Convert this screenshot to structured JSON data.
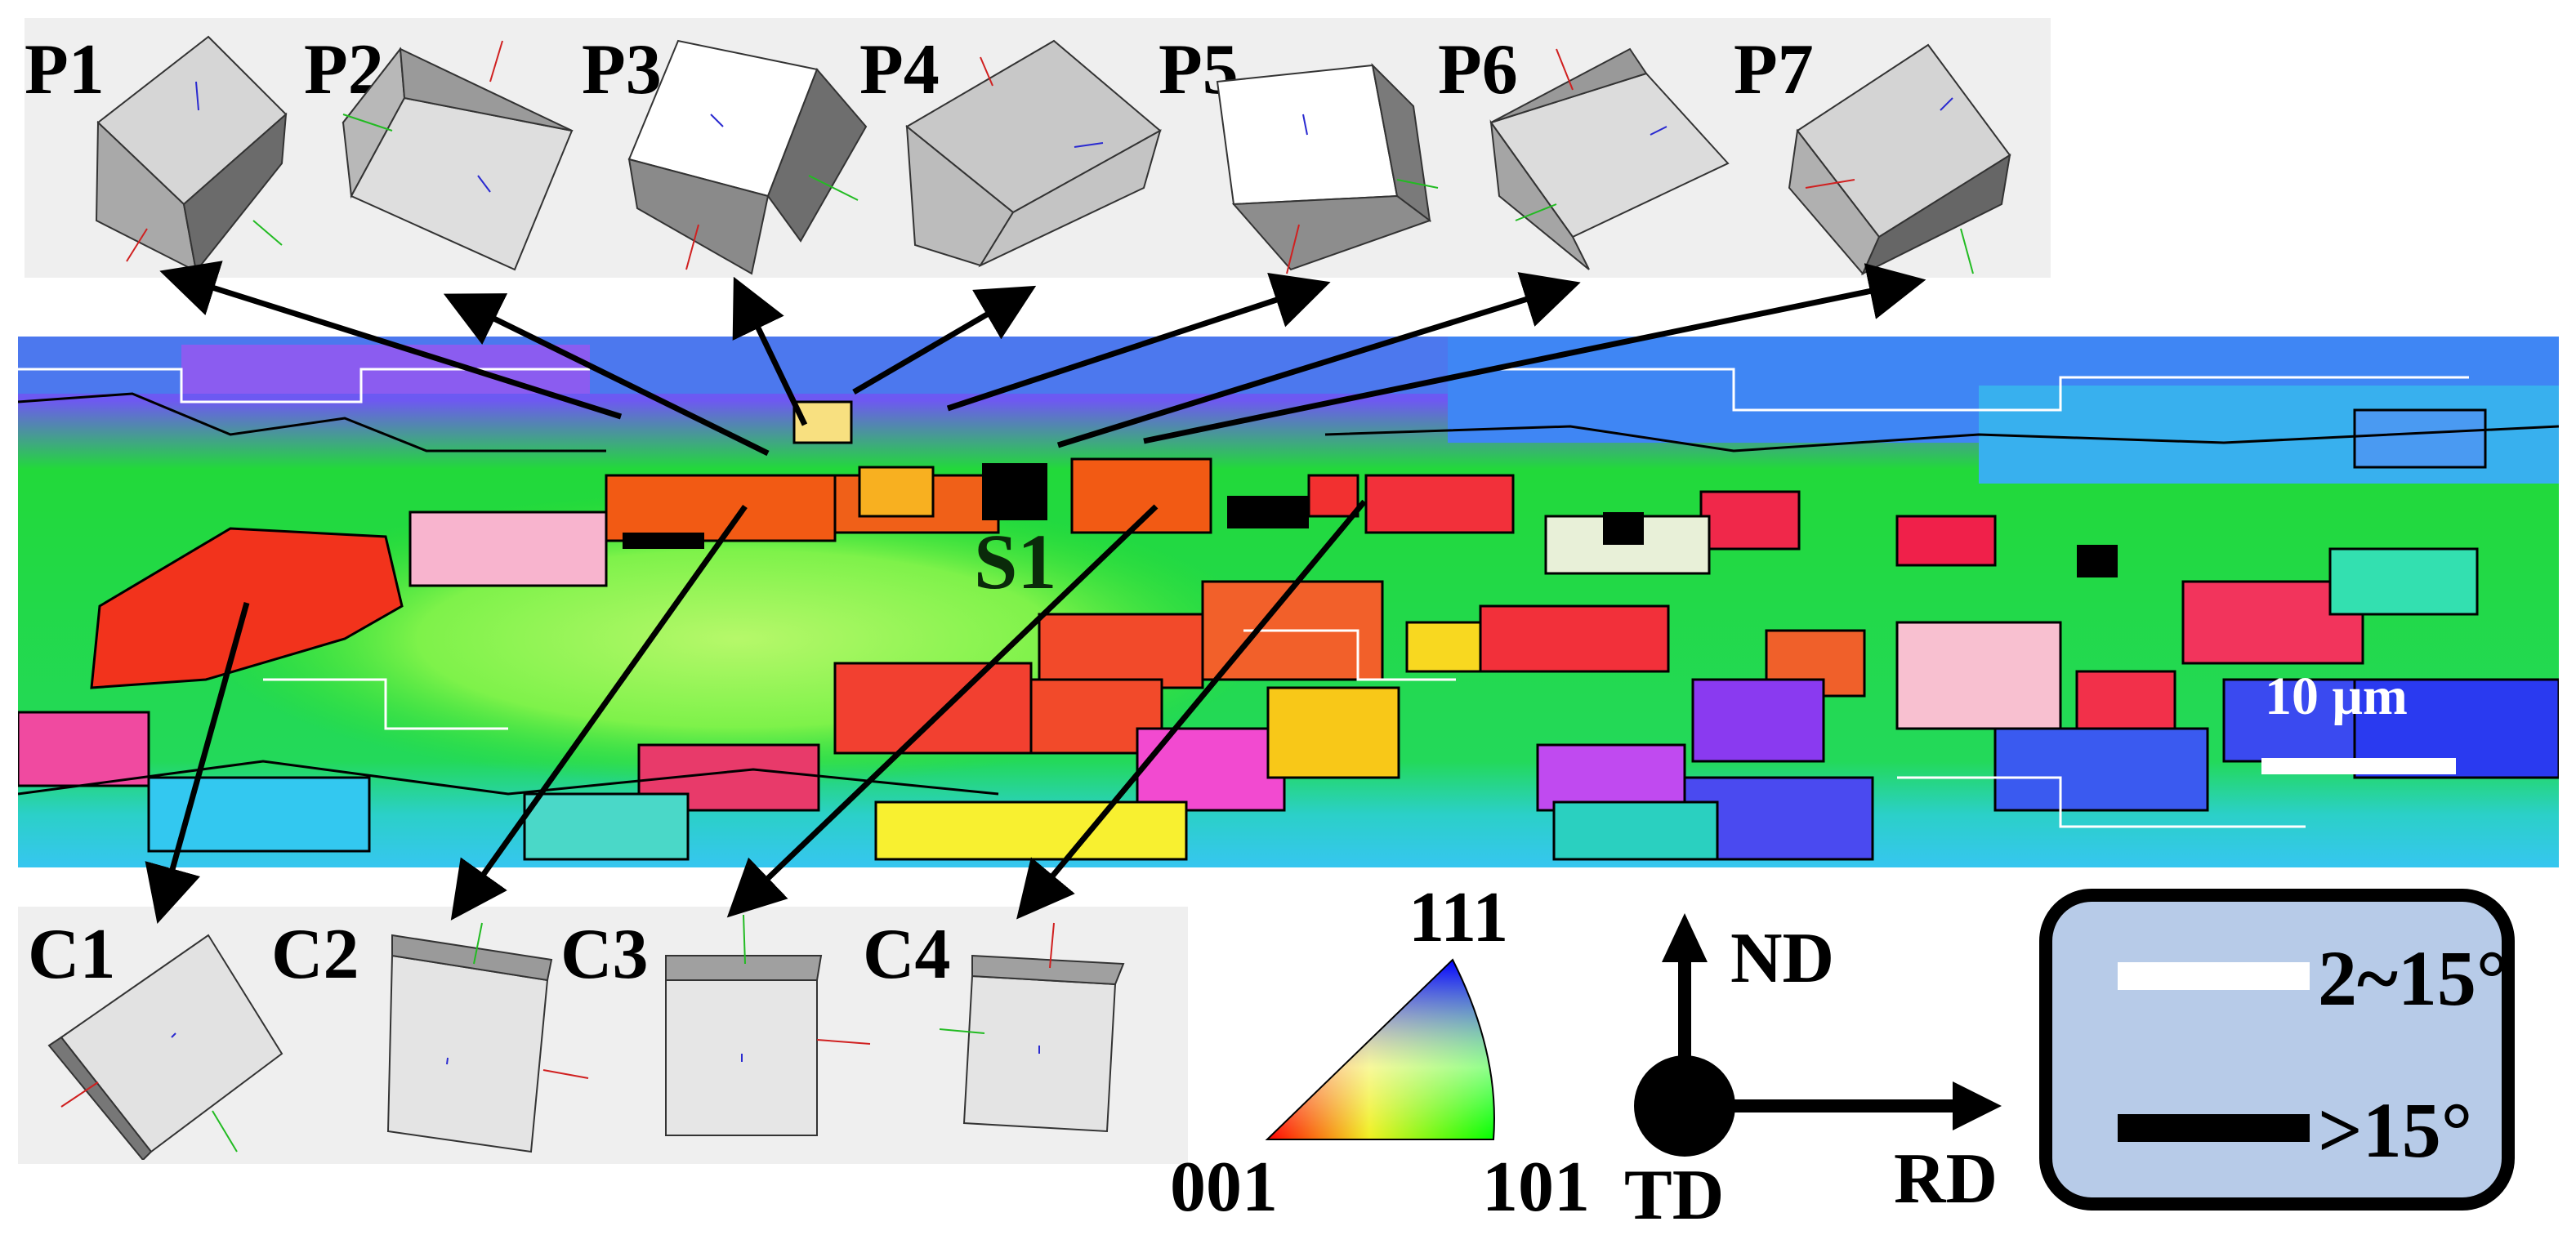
{
  "top_panel_labels": [
    "P1",
    "P2",
    "P3",
    "P4",
    "P5",
    "P6",
    "P7"
  ],
  "bottom_panel_labels": [
    "C1",
    "C2",
    "C3",
    "C4"
  ],
  "map_label": "S1",
  "scale_bar": "10 μm",
  "ipf_triangle": {
    "corner_001": "001",
    "corner_101": "101",
    "corner_111": "111"
  },
  "axes": {
    "nd": "ND",
    "rd": "RD",
    "td": "TD"
  },
  "boundary_legend": {
    "low_angle": {
      "label": "2~15°",
      "color": "#ffffff"
    },
    "high_angle": {
      "label": ">15°",
      "color": "#000000"
    }
  },
  "colors": {
    "panel_bg": "#efefef",
    "legend_bg": "#b7cbe8",
    "map_base": "#27e21a"
  }
}
